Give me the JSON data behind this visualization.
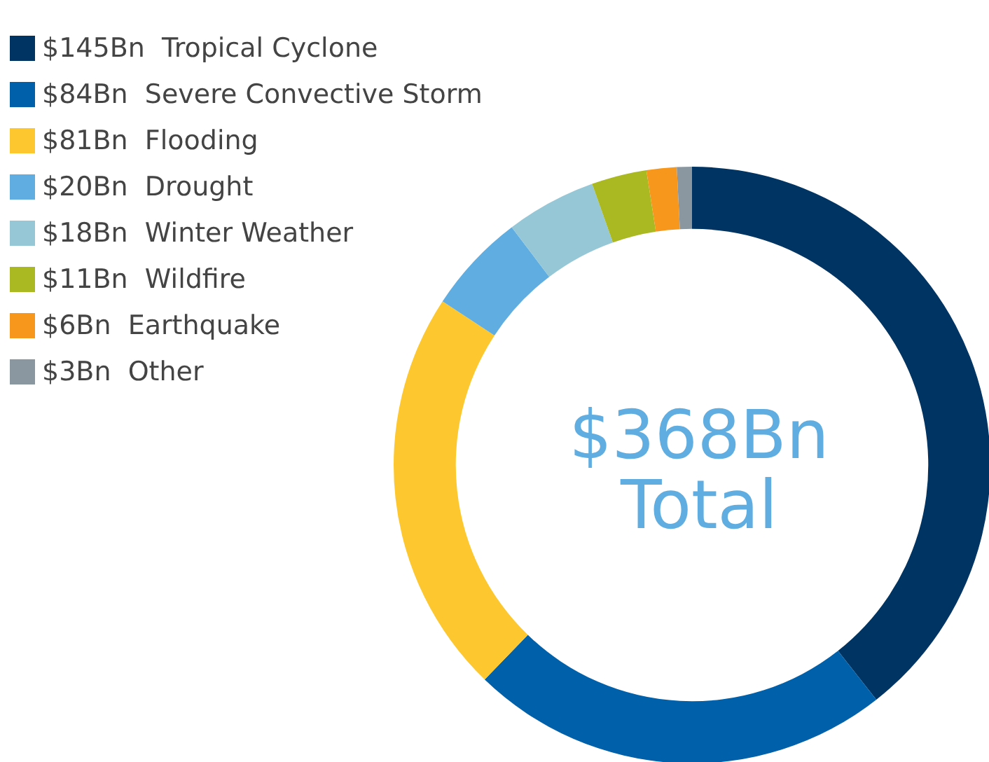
{
  "chart_data": {
    "type": "donut",
    "title": "$368Bn",
    "subtitle": "Total",
    "categories": [
      "Tropical Cyclone",
      "Severe Convective Storm",
      "Flooding",
      "Drought",
      "Winter Weather",
      "Wildfire",
      "Earthquake",
      "Other"
    ],
    "values": [
      145,
      84,
      81,
      20,
      18,
      11,
      6,
      3
    ],
    "value_labels": [
      "$145Bn",
      "$84Bn",
      "$81Bn",
      "$20Bn",
      "$18Bn",
      "$11Bn",
      "$6Bn",
      "$3Bn"
    ],
    "colors": [
      "#003462",
      "#0060a9",
      "#fdc82f",
      "#5fade1",
      "#96c7d6",
      "#aab822",
      "#f7981d",
      "#8a96a0"
    ],
    "legend": "top left"
  }
}
